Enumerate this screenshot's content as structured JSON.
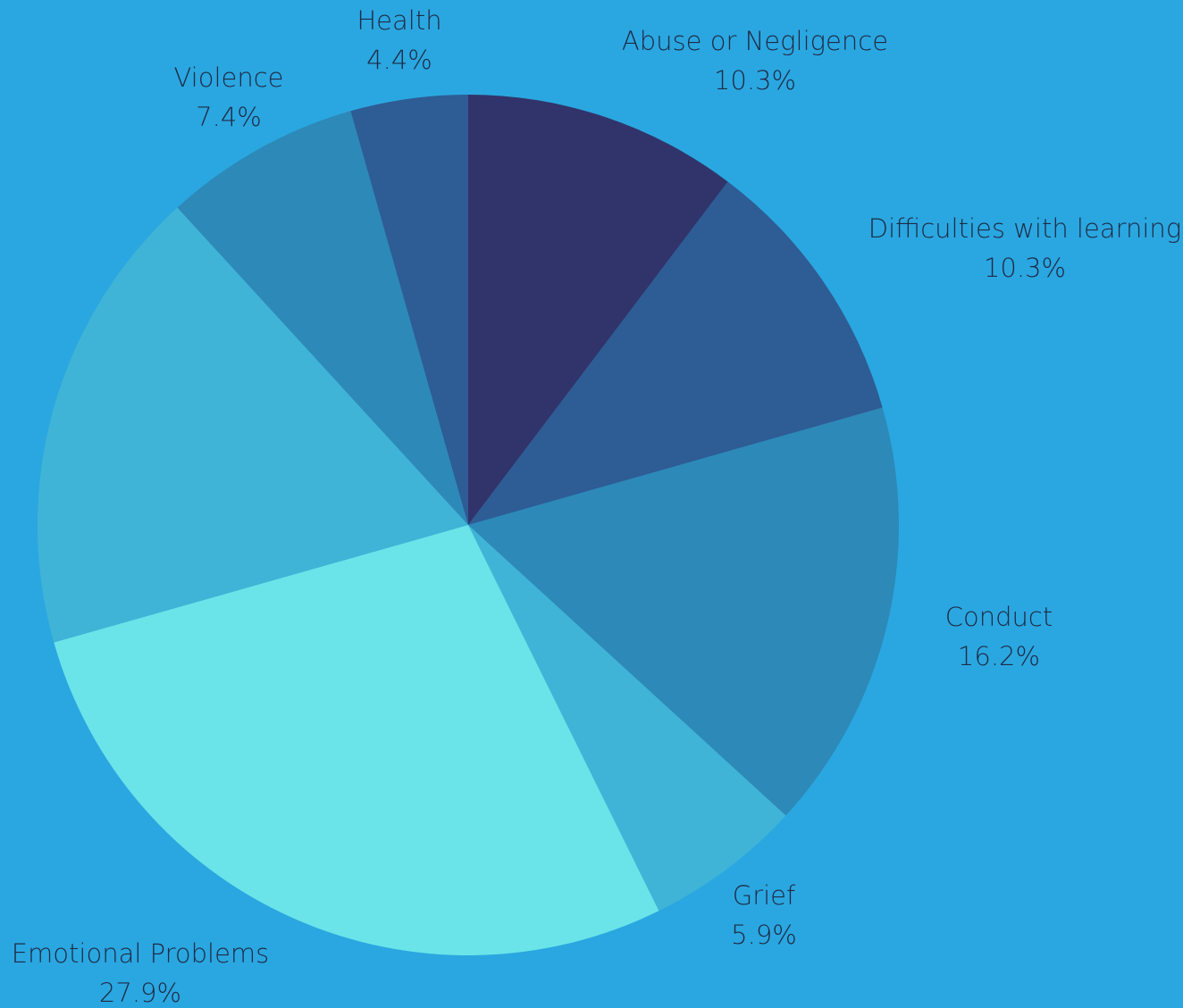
{
  "chart_data": {
    "type": "pie",
    "title": "",
    "slices": [
      {
        "label": "Abuse or Negligence",
        "value": 10.3,
        "display": "10.3%",
        "color": "#31346a"
      },
      {
        "label": "Difficulties with learning",
        "value": 10.3,
        "display": "10.3%",
        "color": "#2e5c94"
      },
      {
        "label": "Conduct",
        "value": 16.2,
        "display": "16.2%",
        "color": "#2d89b8"
      },
      {
        "label": "Grief",
        "value": 5.9,
        "display": "5.9%",
        "color": "#40b4d6"
      },
      {
        "label": "Emotional Problems",
        "value": 27.9,
        "display": "27.9%",
        "color": "#6ae4e8"
      },
      {
        "label": "",
        "value": 17.6,
        "display": "",
        "color": "#40b4d6"
      },
      {
        "label": "Violence",
        "value": 7.4,
        "display": "7.4%",
        "color": "#2d89b8"
      },
      {
        "label": "Health",
        "value": 4.4,
        "display": "4.4%",
        "color": "#2e5c94"
      }
    ],
    "start": "12 o'clock",
    "direction": "clockwise",
    "legend": "none (labels outside slices)"
  },
  "colors": {
    "background": "#2aa7e1",
    "label_text": "#1f2a44"
  }
}
